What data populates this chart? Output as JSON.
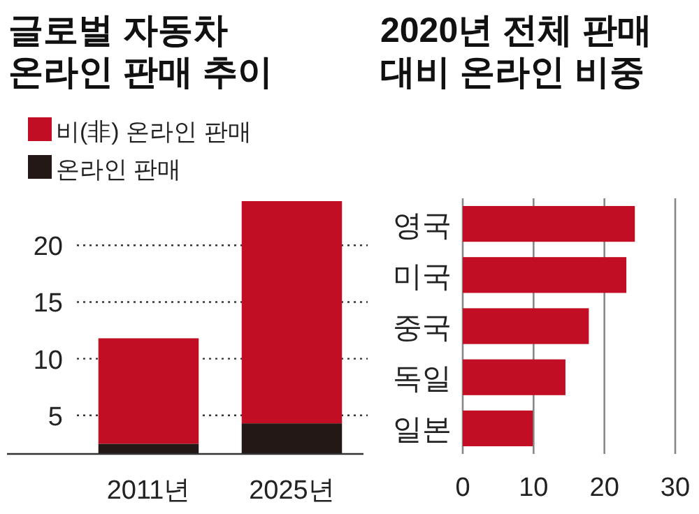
{
  "chart_data": [
    {
      "type": "bar",
      "title": "글로벌 자동차\n온라인 판매 추이",
      "stacked": true,
      "categories": [
        "2011년",
        "2025년"
      ],
      "series": [
        {
          "name": "온라인 판매",
          "color": "#231816",
          "values": [
            2.5,
            4.3
          ]
        },
        {
          "name": "비(非) 온라인 판매",
          "color": "#c20e24",
          "values": [
            9.3,
            19.6
          ]
        }
      ],
      "ylim": [
        1.6,
        23.9
      ],
      "yticks": [
        5,
        10,
        15,
        20
      ],
      "grid": "y",
      "legend": "top left"
    },
    {
      "type": "bar",
      "title": "2020년 전체 판매\n대비 온라인 비중",
      "orientation": "horizontal",
      "categories": [
        "영국",
        "미국",
        "중국",
        "독일",
        "일본"
      ],
      "values": [
        24.3,
        23.1,
        17.8,
        14.5,
        9.9
      ],
      "color": "#c20e24",
      "xlim": [
        0,
        30
      ],
      "xticks": [
        0,
        10,
        20,
        30
      ],
      "grid": "x"
    }
  ]
}
